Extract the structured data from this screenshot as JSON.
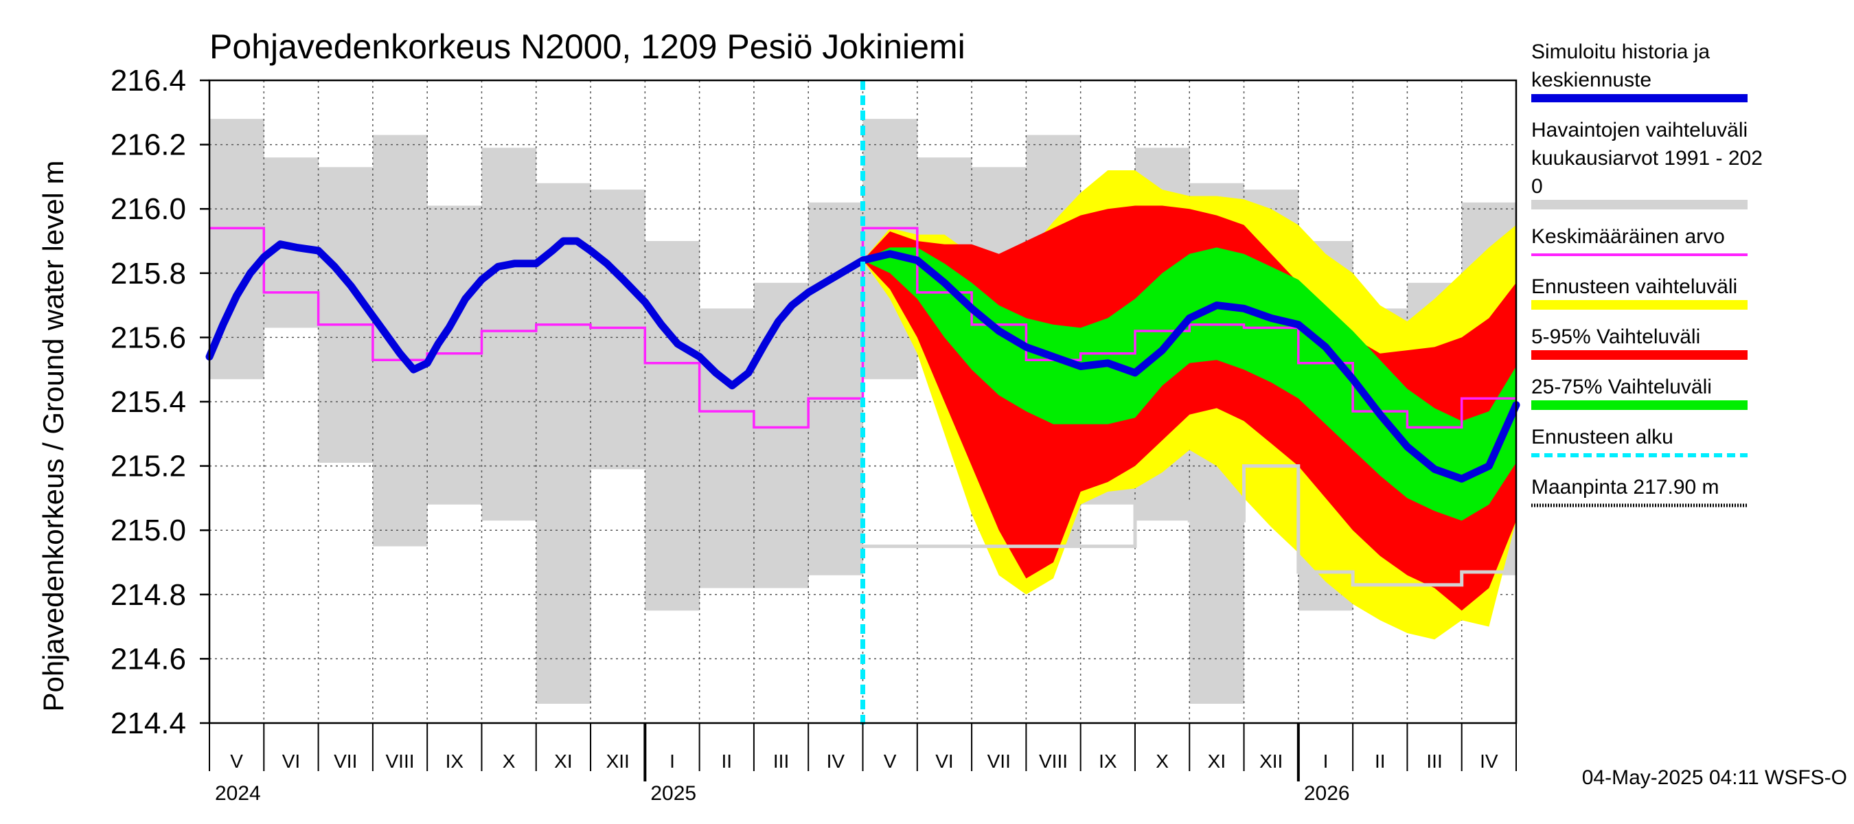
{
  "chart_data": {
    "type": "line",
    "title": "Pohjavedenkorkeus N2000, 1209 Pesiö Jokiniemi",
    "ylabel": "Pohjavedenkorkeus / Ground water level   m",
    "ylim": [
      214.4,
      216.4
    ],
    "yticks": [
      "216.4",
      "216.2",
      "216.0",
      "215.8",
      "215.6",
      "215.4",
      "215.2",
      "215.0",
      "214.8",
      "214.6",
      "214.4"
    ],
    "grid": true,
    "legend_position": "right",
    "footer": "04-May-2025 04:11 WSFS-O",
    "months": [
      "V",
      "VI",
      "VII",
      "VIII",
      "IX",
      "X",
      "XI",
      "XII",
      "I",
      "II",
      "III",
      "IV",
      "V",
      "VI",
      "VII",
      "VIII",
      "IX",
      "X",
      "XI",
      "XII",
      "I",
      "II",
      "III",
      "IV"
    ],
    "years": [
      {
        "label": "2024",
        "month_index": 0
      },
      {
        "label": "2025",
        "month_index": 8
      },
      {
        "label": "2026",
        "month_index": 20
      }
    ],
    "forecast_start_month": 12,
    "observed_range": {
      "name": "Havaintojen vaihteluväli kuukausiarvot 1991 - 2020",
      "color": "#d3d3d3",
      "low": [
        215.47,
        215.63,
        215.21,
        214.95,
        215.08,
        215.03,
        214.46,
        215.19,
        214.75,
        214.82,
        214.82,
        214.86
      ],
      "high": [
        216.28,
        216.16,
        216.13,
        216.23,
        216.01,
        216.19,
        216.08,
        216.06,
        215.9,
        215.69,
        215.77,
        216.02
      ]
    },
    "mean_monthly": {
      "name": "Keskimääräinen arvo",
      "color": "#ff22ff",
      "values": [
        215.94,
        215.74,
        215.64,
        215.53,
        215.55,
        215.62,
        215.64,
        215.63,
        215.52,
        215.37,
        215.32,
        215.41
      ]
    },
    "min_monthly_forecast_period": [
      214.95,
      214.95,
      214.95,
      214.95,
      214.95,
      215.09,
      215.03,
      215.2,
      214.87,
      214.83,
      214.83,
      214.87
    ],
    "simulated_history": {
      "name": "Simuloitu historia ja keskiennuste",
      "color": "#0000dd",
      "x": [
        0,
        0.25,
        0.5,
        0.75,
        1.0,
        1.3,
        1.6,
        2.0,
        2.3,
        2.6,
        2.9,
        3.2,
        3.5,
        3.75,
        4.0,
        4.2,
        4.4,
        4.7,
        5.0,
        5.3,
        5.6,
        6.0,
        6.3,
        6.5,
        6.75,
        7.0,
        7.3,
        7.6,
        8.0,
        8.3,
        8.6,
        9.0,
        9.3,
        9.6,
        9.9,
        10.2,
        10.45,
        10.7,
        11.0,
        11.3,
        11.6,
        12.0
      ],
      "values": [
        215.54,
        215.64,
        215.73,
        215.8,
        215.85,
        215.89,
        215.88,
        215.87,
        215.82,
        215.76,
        215.69,
        215.62,
        215.55,
        215.5,
        215.52,
        215.58,
        215.63,
        215.72,
        215.78,
        215.82,
        215.83,
        215.83,
        215.87,
        215.9,
        215.9,
        215.87,
        215.83,
        215.78,
        215.71,
        215.64,
        215.58,
        215.54,
        215.49,
        215.45,
        215.49,
        215.58,
        215.65,
        215.7,
        215.74,
        215.77,
        215.8,
        215.84
      ]
    },
    "forecast": {
      "x": [
        12.0,
        12.5,
        13.0,
        13.5,
        14.0,
        14.5,
        15.0,
        15.5,
        16.0,
        16.5,
        17.0,
        17.5,
        18.0,
        18.5,
        19.0,
        19.5,
        20.0,
        20.5,
        21.0,
        21.5,
        22.0,
        22.5,
        23.0,
        23.5,
        24.0
      ],
      "median": [
        215.84,
        215.86,
        215.84,
        215.77,
        215.69,
        215.62,
        215.57,
        215.54,
        215.51,
        215.52,
        215.49,
        215.56,
        215.66,
        215.7,
        215.69,
        215.66,
        215.64,
        215.57,
        215.47,
        215.36,
        215.26,
        215.19,
        215.16,
        215.2,
        215.39
      ],
      "p25": [
        215.84,
        215.8,
        215.72,
        215.6,
        215.5,
        215.42,
        215.37,
        215.33,
        215.33,
        215.33,
        215.35,
        215.45,
        215.52,
        215.53,
        215.5,
        215.46,
        215.41,
        215.33,
        215.25,
        215.17,
        215.1,
        215.06,
        215.03,
        215.08,
        215.21
      ],
      "p75": [
        215.84,
        215.88,
        215.88,
        215.83,
        215.77,
        215.7,
        215.66,
        215.64,
        215.63,
        215.66,
        215.72,
        215.8,
        215.86,
        215.88,
        215.86,
        215.82,
        215.78,
        215.7,
        215.62,
        215.53,
        215.44,
        215.38,
        215.34,
        215.37,
        215.51
      ],
      "p5": [
        215.84,
        215.75,
        215.6,
        215.4,
        215.2,
        215.0,
        214.85,
        214.9,
        215.12,
        215.15,
        215.2,
        215.28,
        215.36,
        215.38,
        215.34,
        215.27,
        215.2,
        215.1,
        215.0,
        214.92,
        214.86,
        214.82,
        214.75,
        214.82,
        215.03
      ],
      "p95": [
        215.84,
        215.93,
        215.9,
        215.89,
        215.89,
        215.86,
        215.9,
        215.94,
        215.98,
        216.0,
        216.01,
        216.01,
        216.0,
        215.98,
        215.95,
        215.86,
        215.77,
        215.68,
        215.6,
        215.55,
        215.56,
        215.57,
        215.6,
        215.66,
        215.77
      ],
      "min": [
        215.84,
        215.72,
        215.55,
        215.3,
        215.05,
        214.86,
        214.8,
        214.85,
        215.08,
        215.12,
        215.13,
        215.18,
        215.25,
        215.2,
        215.1,
        215.01,
        214.93,
        214.84,
        214.77,
        214.72,
        214.68,
        214.66,
        214.72,
        214.7,
        215.03
      ],
      "max": [
        215.84,
        215.94,
        215.92,
        215.92,
        215.86,
        215.84,
        215.86,
        215.96,
        216.05,
        216.12,
        216.12,
        216.06,
        216.04,
        216.04,
        216.03,
        216.0,
        215.95,
        215.86,
        215.8,
        215.7,
        215.65,
        215.72,
        215.8,
        215.88,
        215.95
      ]
    },
    "legend": [
      {
        "label": "Simuloitu historia ja keskiennuste",
        "lines": [
          "Simuloitu historia ja",
          "keskiennuste"
        ],
        "color": "#0000dd",
        "style": "thick"
      },
      {
        "label": "Havaintojen vaihteluväli kuukausiarvot 1991 - 2020",
        "lines": [
          "Havaintojen vaihteluväli",
          " kuukausiarvot 1991 - 202",
          "0"
        ],
        "color": "#d3d3d3",
        "style": "band"
      },
      {
        "label": "Keskimääräinen arvo",
        "lines": [
          "Keskimääräinen arvo"
        ],
        "color": "#ff22ff",
        "style": "thin"
      },
      {
        "label": "Ennusteen vaihteluväli",
        "lines": [
          "Ennusteen vaihteluväli"
        ],
        "color": "#ffff00",
        "style": "band"
      },
      {
        "label": "5-95% Vaihteluväli",
        "lines": [
          "5-95% Vaihteluväli"
        ],
        "color": "#ff0000",
        "style": "band"
      },
      {
        "label": "25-75% Vaihteluväli",
        "lines": [
          "25-75% Vaihteluväli"
        ],
        "color": "#00ee00",
        "style": "band"
      },
      {
        "label": "Ennusteen alku",
        "lines": [
          "Ennusteen alku"
        ],
        "color": "#00eeff",
        "style": "dashed"
      },
      {
        "label": "Maanpinta 217.90 m",
        "lines": [
          "Maanpinta 217.90 m"
        ],
        "color": "#000000",
        "style": "dotted"
      }
    ]
  }
}
